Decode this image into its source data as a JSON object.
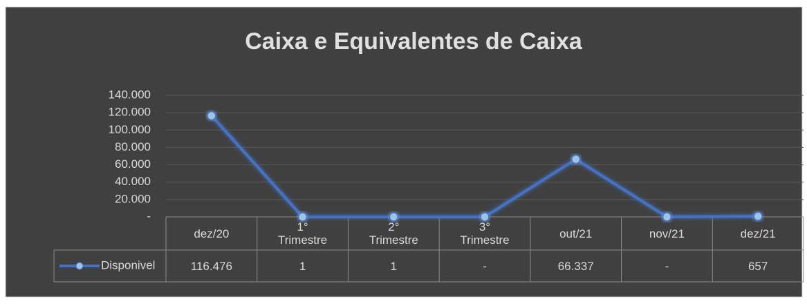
{
  "chart_data": {
    "type": "line",
    "title": "Caixa e Equivalentes de Caixa",
    "categories": [
      "dez/20",
      "1° Trimestre",
      "2° Trimestre",
      "3° Trimestre",
      "out/21",
      "nov/21",
      "dez/21"
    ],
    "series": [
      {
        "name": "Disponivel",
        "color": "#4472c4",
        "values": [
          116476,
          1,
          1,
          0,
          66337,
          0,
          657
        ],
        "value_labels": [
          "116.476",
          "1",
          "1",
          "-",
          "66.337",
          "-",
          "657"
        ]
      }
    ],
    "ylim": [
      0,
      140000
    ],
    "yticks": [
      {
        "value": 0,
        "label": "-"
      },
      {
        "value": 20000,
        "label": "20.000"
      },
      {
        "value": 40000,
        "label": "40.000"
      },
      {
        "value": 60000,
        "label": "60.000"
      },
      {
        "value": 80000,
        "label": "80.000"
      },
      {
        "value": 100000,
        "label": "100.000"
      },
      {
        "value": 120000,
        "label": "120.000"
      },
      {
        "value": 140000,
        "label": "140.000"
      }
    ],
    "grid": true
  }
}
